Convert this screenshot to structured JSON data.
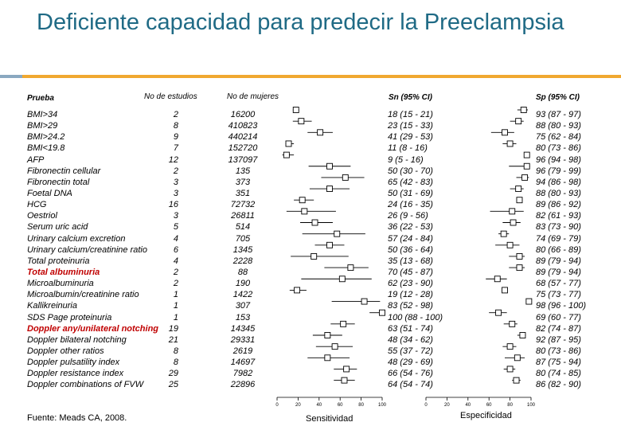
{
  "title": "Deficiente capacidad para predecir la Preeclampsia",
  "headers": {
    "prueba": "Prueba",
    "estudios": "No de estudios",
    "mujeres": "No de mujeres",
    "sn": "Sn (95% CI)",
    "sp": "Sp (95% CI)"
  },
  "rows": [
    {
      "test": "BMI>34",
      "studies": "2",
      "women": "16200",
      "sn": "18 (15 - 21)",
      "sp": "93 (87 - 97)",
      "sn_est": 18,
      "sn_lo": 15,
      "sn_hi": 21,
      "sp_est": 93,
      "sp_lo": 87,
      "sp_hi": 97,
      "highlight": false
    },
    {
      "test": "BMI>29",
      "studies": "8",
      "women": "410823",
      "sn": "23 (15 - 33)",
      "sp": "88 (80 - 93)",
      "sn_est": 23,
      "sn_lo": 15,
      "sn_hi": 33,
      "sp_est": 88,
      "sp_lo": 80,
      "sp_hi": 93,
      "highlight": false
    },
    {
      "test": "BMI>24.2",
      "studies": "9",
      "women": "440214",
      "sn": "41 (29 - 53)",
      "sp": "75 (62 - 84)",
      "sn_est": 41,
      "sn_lo": 29,
      "sn_hi": 53,
      "sp_est": 75,
      "sp_lo": 62,
      "sp_hi": 84,
      "highlight": false
    },
    {
      "test": "BMI<19.8",
      "studies": "7",
      "women": "152720",
      "sn": "11 (8 - 16)",
      "sp": "80 (73 - 86)",
      "sn_est": 11,
      "sn_lo": 8,
      "sn_hi": 16,
      "sp_est": 80,
      "sp_lo": 73,
      "sp_hi": 86,
      "highlight": false
    },
    {
      "test": "AFP",
      "studies": "12",
      "women": "137097",
      "sn": "9 (5 - 16)",
      "sp": "96 (94 - 98)",
      "sn_est": 9,
      "sn_lo": 5,
      "sn_hi": 16,
      "sp_est": 96,
      "sp_lo": 94,
      "sp_hi": 98,
      "highlight": false
    },
    {
      "test": "Fibronectin cellular",
      "studies": "2",
      "women": "135",
      "sn": "50 (30 - 70)",
      "sp": "96 (79 - 99)",
      "sn_est": 50,
      "sn_lo": 30,
      "sn_hi": 70,
      "sp_est": 96,
      "sp_lo": 79,
      "sp_hi": 99,
      "highlight": false
    },
    {
      "test": "Fibronectin total",
      "studies": "3",
      "women": "373",
      "sn": "65 (42 - 83)",
      "sp": "94 (86 - 98)",
      "sn_est": 65,
      "sn_lo": 42,
      "sn_hi": 83,
      "sp_est": 94,
      "sp_lo": 86,
      "sp_hi": 98,
      "highlight": false
    },
    {
      "test": "Foetal DNA",
      "studies": "3",
      "women": "351",
      "sn": "50 (31 - 69)",
      "sp": "88 (80 - 93)",
      "sn_est": 50,
      "sn_lo": 31,
      "sn_hi": 69,
      "sp_est": 88,
      "sp_lo": 80,
      "sp_hi": 93,
      "highlight": false
    },
    {
      "test": "HCG",
      "studies": "16",
      "women": "72732",
      "sn": "24 (16 - 35)",
      "sp": "89 (86 - 92)",
      "sn_est": 24,
      "sn_lo": 16,
      "sn_hi": 35,
      "sp_est": 89,
      "sp_lo": 86,
      "sp_hi": 92,
      "highlight": false
    },
    {
      "test": "Oestriol",
      "studies": "3",
      "women": "26811",
      "sn": "26 (9 - 56)",
      "sp": "82 (61 - 93)",
      "sn_est": 26,
      "sn_lo": 9,
      "sn_hi": 56,
      "sp_est": 82,
      "sp_lo": 61,
      "sp_hi": 93,
      "highlight": false
    },
    {
      "test": "Serum uric acid",
      "studies": "5",
      "women": "514",
      "sn": "36 (22 - 53)",
      "sp": "83 (73 - 90)",
      "sn_est": 36,
      "sn_lo": 22,
      "sn_hi": 53,
      "sp_est": 83,
      "sp_lo": 73,
      "sp_hi": 90,
      "highlight": false
    },
    {
      "test": "Urinary calcium excretion",
      "studies": "4",
      "women": "705",
      "sn": "57 (24 - 84)",
      "sp": "74 (69 - 79)",
      "sn_est": 57,
      "sn_lo": 24,
      "sn_hi": 84,
      "sp_est": 74,
      "sp_lo": 69,
      "sp_hi": 79,
      "highlight": false
    },
    {
      "test": "Urinary calcium/creatinine ratio",
      "studies": "6",
      "women": "1345",
      "sn": "50 (36 - 64)",
      "sp": "80 (66 - 89)",
      "sn_est": 50,
      "sn_lo": 36,
      "sn_hi": 64,
      "sp_est": 80,
      "sp_lo": 66,
      "sp_hi": 89,
      "highlight": false
    },
    {
      "test": "Total proteinuria",
      "studies": "4",
      "women": "2228",
      "sn": "35 (13 - 68)",
      "sp": "89 (79 - 94)",
      "sn_est": 35,
      "sn_lo": 13,
      "sn_hi": 68,
      "sp_est": 89,
      "sp_lo": 79,
      "sp_hi": 94,
      "highlight": false
    },
    {
      "test": "Total albuminuria",
      "studies": "2",
      "women": "88",
      "sn": "70 (45 - 87)",
      "sp": "89 (79 - 94)",
      "sn_est": 70,
      "sn_lo": 45,
      "sn_hi": 87,
      "sp_est": 89,
      "sp_lo": 79,
      "sp_hi": 94,
      "highlight": true
    },
    {
      "test": "Microalbuminuria",
      "studies": "2",
      "women": "190",
      "sn": "62 (23 - 90)",
      "sp": "68 (57 - 77)",
      "sn_est": 62,
      "sn_lo": 23,
      "sn_hi": 90,
      "sp_est": 68,
      "sp_lo": 57,
      "sp_hi": 77,
      "highlight": false
    },
    {
      "test": "Microalbumin/creatinine ratio",
      "studies": "1",
      "women": "1422",
      "sn": "19 (12 - 28)",
      "sp": "75 (73 - 77)",
      "sn_est": 19,
      "sn_lo": 12,
      "sn_hi": 28,
      "sp_est": 75,
      "sp_lo": 73,
      "sp_hi": 77,
      "highlight": false
    },
    {
      "test": "Kallikreinuria",
      "studies": "1",
      "women": "307",
      "sn": "83 (52 - 98)",
      "sp": "98 (96 - 100)",
      "sn_est": 83,
      "sn_lo": 52,
      "sn_hi": 98,
      "sp_est": 98,
      "sp_lo": 96,
      "sp_hi": 100,
      "highlight": false
    },
    {
      "test": "SDS Page proteinuria",
      "studies": "1",
      "women": "153",
      "sn": "100 (88 - 100)",
      "sp": "69 (60 - 77)",
      "sn_est": 100,
      "sn_lo": 88,
      "sn_hi": 100,
      "sp_est": 69,
      "sp_lo": 60,
      "sp_hi": 77,
      "highlight": false
    },
    {
      "test": "Doppler any/unilateral notching",
      "studies": "19",
      "women": "14345",
      "sn": "63 (51 - 74)",
      "sp": "82 (74 - 87)",
      "sn_est": 63,
      "sn_lo": 51,
      "sn_hi": 74,
      "sp_est": 82,
      "sp_lo": 74,
      "sp_hi": 87,
      "highlight": true
    },
    {
      "test": "Doppler bilateral notching",
      "studies": "21",
      "women": "29331",
      "sn": "48 (34 - 62)",
      "sp": "92 (87 - 95)",
      "sn_est": 48,
      "sn_lo": 34,
      "sn_hi": 62,
      "sp_est": 92,
      "sp_lo": 87,
      "sp_hi": 95,
      "highlight": false
    },
    {
      "test": "Doppler other ratios",
      "studies": "8",
      "women": "2619",
      "sn": "55 (37 - 72)",
      "sp": "80 (73 - 86)",
      "sn_est": 55,
      "sn_lo": 37,
      "sn_hi": 72,
      "sp_est": 80,
      "sp_lo": 73,
      "sp_hi": 86,
      "highlight": false
    },
    {
      "test": "Doppler pulsatility index",
      "studies": "8",
      "women": "14697",
      "sn": "48 (29 - 69)",
      "sp": "87 (75 - 94)",
      "sn_est": 48,
      "sn_lo": 29,
      "sn_hi": 69,
      "sp_est": 87,
      "sp_lo": 75,
      "sp_hi": 94,
      "highlight": false
    },
    {
      "test": "Doppler resistance index",
      "studies": "29",
      "women": "7982",
      "sn": "66 (54 - 76)",
      "sp": "80 (74 - 85)",
      "sn_est": 66,
      "sn_lo": 54,
      "sn_hi": 76,
      "sp_est": 80,
      "sp_lo": 74,
      "sp_hi": 85,
      "highlight": false
    },
    {
      "test": "Doppler combinations of FVW",
      "studies": "25",
      "women": "22896",
      "sn": "64 (54 - 74)",
      "sp": "86 (82 - 90)",
      "sn_est": 64,
      "sn_lo": 54,
      "sn_hi": 74,
      "sp_est": 86,
      "sp_lo": 82,
      "sp_hi": 90,
      "highlight": false
    }
  ],
  "axes": {
    "sn_label": "Sensitividad",
    "sp_label": "Especificidad",
    "ticks": [
      "0",
      "20",
      "40",
      "60",
      "80",
      "100"
    ]
  },
  "footer": "Fuente: Meads CA, 2008.",
  "colors": {
    "title": "#1f6a85",
    "accent_bar": "#f0a830",
    "highlight": "#c00000"
  }
}
